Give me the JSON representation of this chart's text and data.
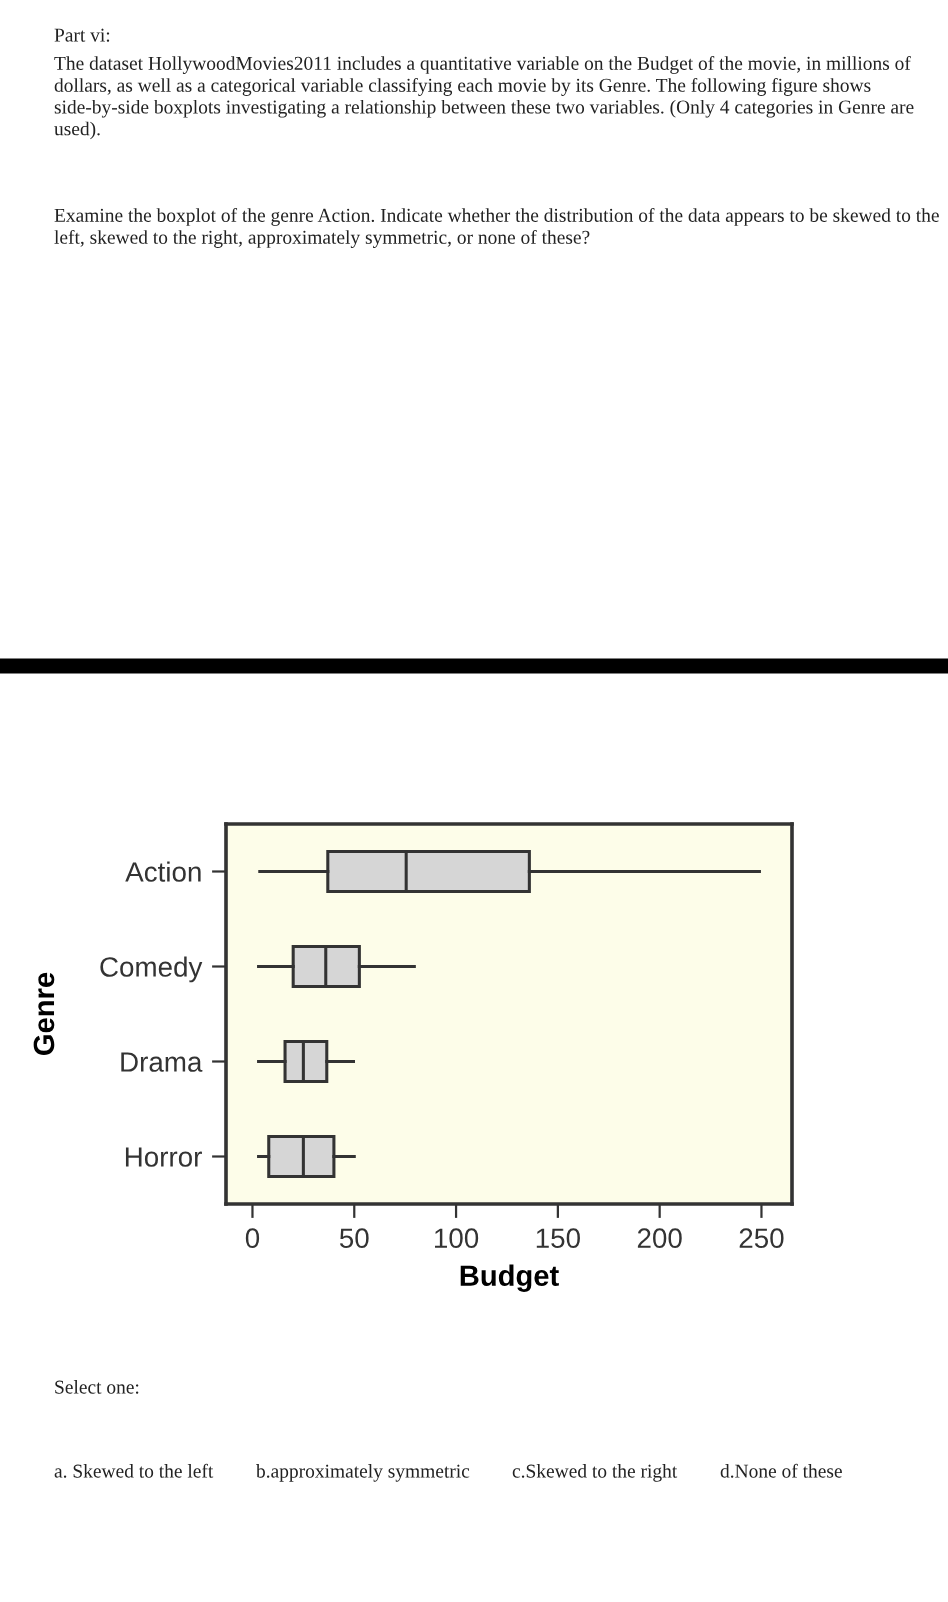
{
  "chart_data": {
    "type": "box",
    "orientation": "horizontal",
    "xlabel": "Budget",
    "ylabel": "Genre",
    "categories": [
      "Action",
      "Comedy",
      "Drama",
      "Horror"
    ],
    "boxes": [
      {
        "low": 3.6,
        "q1": 37,
        "median": 75.5,
        "q3": 136,
        "high": 249
      },
      {
        "low": 3,
        "q1": 20,
        "median": 36,
        "q3": 52.5,
        "high": 79.5
      },
      {
        "low": 3,
        "q1": 16,
        "median": 25,
        "q3": 36.5,
        "high": 49.6
      },
      {
        "low": 3,
        "q1": 8,
        "median": 25,
        "q3": 40,
        "high": 50
      }
    ],
    "color": "#d6d6d6",
    "xlim": [
      -13,
      265
    ],
    "xticks": [
      0,
      50,
      100,
      150,
      200,
      250
    ],
    "grid": false,
    "annotations": [
      "Part vi:",
      "The dataset HollywoodMovies2011 includes a quantitative variable on the Budget of the movie, in millions of dollars, as well as a categorical variable classifying each movie by its Genre. The following figure shows side-by-side boxplots investigating a relationship between these two variables. (Only 4 categories in Genre are used).",
      "Examine the boxplot of the genre Action. Indicate whether the distribution of the data appears to be skewed to the left, skewed to the right, approximately symmetric, or none of these?",
      "Select one:",
      "a. Skewed to the left",
      "b.approximately symmetric",
      "c.Skewed to the right",
      "d.None of these"
    ]
  }
}
